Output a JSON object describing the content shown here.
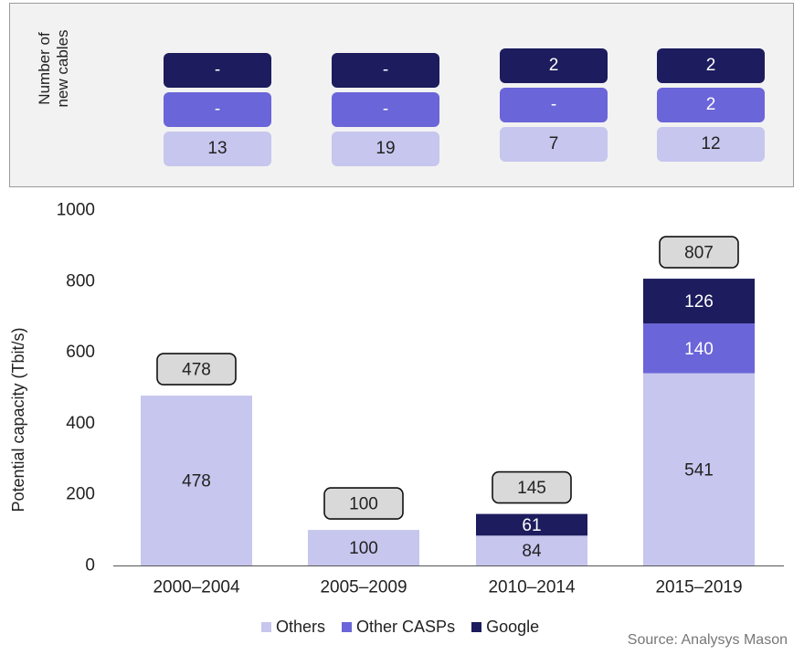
{
  "cables_panel": {
    "label_line1": "Number of",
    "label_line2": "new cables",
    "columns": [
      {
        "google": "-",
        "other_casps": "-",
        "others": "13"
      },
      {
        "google": "-",
        "other_casps": "-",
        "others": "19"
      },
      {
        "google": "2",
        "other_casps": "-",
        "others": "7"
      },
      {
        "google": "2",
        "other_casps": "2",
        "others": "12"
      }
    ]
  },
  "chart_data": {
    "type": "bar",
    "stacked": true,
    "categories": [
      "2000–2004",
      "2005–2009",
      "2010–2014",
      "2015–2019"
    ],
    "series": [
      {
        "name": "Others",
        "values": [
          478,
          100,
          84,
          541
        ],
        "color": "#c7c6ee"
      },
      {
        "name": "Other CASPs",
        "values": [
          0,
          0,
          0,
          140
        ],
        "color": "#6a65d8"
      },
      {
        "name": "Google",
        "values": [
          0,
          0,
          61,
          126
        ],
        "color": "#1c1c5e"
      }
    ],
    "totals": [
      478,
      100,
      145,
      807
    ],
    "ylabel": "Potential capacity (Tbit/s)",
    "xlabel": "",
    "ylim": [
      0,
      1000
    ],
    "yticks": [
      0,
      200,
      400,
      600,
      800,
      1000
    ],
    "grid": false,
    "legend_position": "bottom"
  },
  "source": "Source: Analysys Mason"
}
